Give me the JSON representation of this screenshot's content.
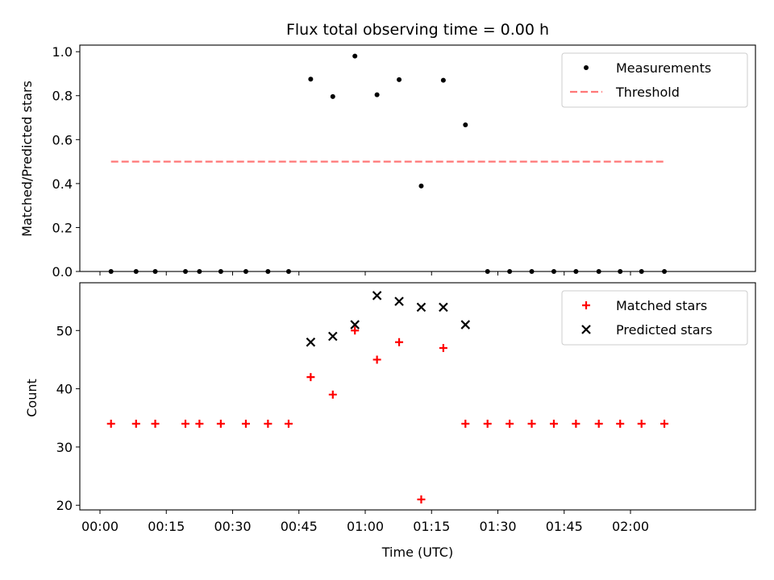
{
  "chart_data": [
    {
      "type": "scatter",
      "title": "Flux total observing time = 0.00 h",
      "xlabel": "",
      "ylabel": "Matched/Predicted stars",
      "ylim": [
        0,
        1.03
      ],
      "yticks": [
        "0.0",
        "0.2",
        "0.4",
        "0.6",
        "0.8",
        "1.0"
      ],
      "legend_position": "top-right",
      "series": [
        {
          "name": "Measurements",
          "marker": "dot",
          "color": "#000000",
          "x": [
            "00:02:30",
            "00:08:10",
            "00:12:30",
            "00:19:20",
            "00:22:30",
            "00:27:20",
            "00:33:00",
            "00:38:00",
            "00:42:40",
            "00:47:40",
            "00:52:40",
            "00:57:40",
            "01:02:40",
            "01:07:40",
            "01:12:40",
            "01:17:40",
            "01:22:40",
            "01:27:40",
            "01:32:40",
            "01:37:40",
            "01:42:40",
            "01:47:40",
            "01:52:50",
            "01:57:40",
            "02:02:30",
            "02:07:40"
          ],
          "values": [
            0,
            0,
            0,
            0,
            0,
            0,
            0,
            0,
            0,
            0.875,
            0.796,
            0.98,
            0.804,
            0.873,
            0.389,
            0.87,
            0.667,
            0,
            0,
            0,
            0,
            0,
            0,
            0,
            0,
            0
          ]
        },
        {
          "name": "Threshold",
          "type": "line",
          "style": "dashed",
          "color": "#ff7777",
          "x": [
            "00:02:30",
            "02:07:40"
          ],
          "values": [
            0.5,
            0.5
          ]
        }
      ]
    },
    {
      "type": "scatter",
      "xlabel": "Time (UTC)",
      "ylabel": "Count",
      "ylim": [
        19.2,
        58.2
      ],
      "yticks": [
        "20",
        "30",
        "40",
        "50"
      ],
      "xticks": [
        "00:00",
        "00:15",
        "00:30",
        "00:45",
        "01:00",
        "01:15",
        "01:30",
        "01:45",
        "02:00"
      ],
      "legend_position": "top-right",
      "series": [
        {
          "name": "Matched stars",
          "marker": "plus",
          "color": "#ff0000",
          "x": [
            "00:02:30",
            "00:08:10",
            "00:12:30",
            "00:19:20",
            "00:22:30",
            "00:27:20",
            "00:33:00",
            "00:38:00",
            "00:42:40",
            "00:47:40",
            "00:52:40",
            "00:57:40",
            "01:02:40",
            "01:07:40",
            "01:12:40",
            "01:17:40",
            "01:22:40",
            "01:27:40",
            "01:32:40",
            "01:37:40",
            "01:42:40",
            "01:47:40",
            "01:52:50",
            "01:57:40",
            "02:02:30",
            "02:07:40"
          ],
          "values": [
            34,
            34,
            34,
            34,
            34,
            34,
            34,
            34,
            34,
            42,
            39,
            50,
            45,
            48,
            21,
            47,
            34,
            34,
            34,
            34,
            34,
            34,
            34,
            34,
            34,
            34
          ]
        },
        {
          "name": "Predicted stars",
          "marker": "x",
          "color": "#000000",
          "x": [
            "00:47:40",
            "00:52:40",
            "00:57:40",
            "01:02:40",
            "01:07:40",
            "01:12:40",
            "01:17:40",
            "01:22:40"
          ],
          "values": [
            48,
            49,
            51,
            56,
            55,
            54,
            54,
            51
          ]
        }
      ]
    }
  ]
}
